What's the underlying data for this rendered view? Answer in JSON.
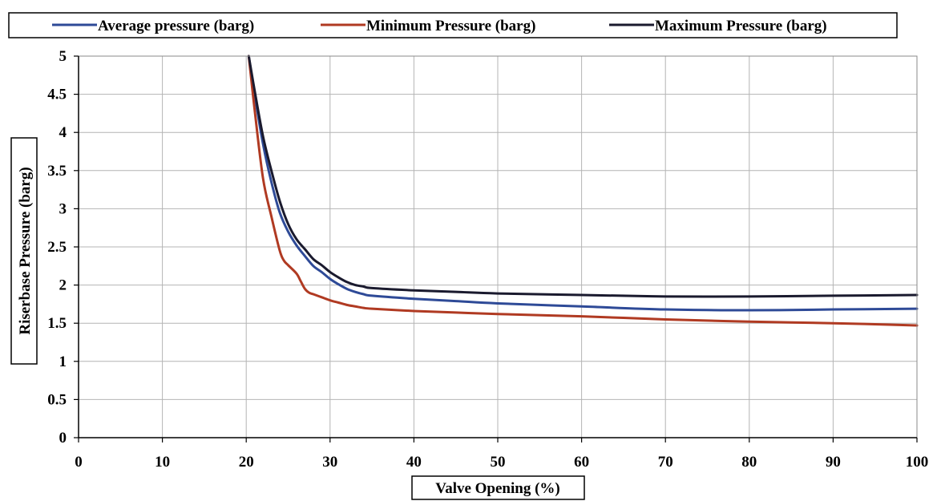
{
  "chart_data": {
    "type": "line",
    "title": "",
    "xlabel": "Valve Opening (%)",
    "ylabel": "Riserbase Pressure (barg)",
    "xlim": [
      0,
      100
    ],
    "ylim": [
      0,
      5
    ],
    "xticks": [
      0,
      10,
      20,
      30,
      40,
      50,
      60,
      70,
      80,
      90,
      100
    ],
    "yticks": [
      0,
      0.5,
      1,
      1.5,
      2,
      2.5,
      3,
      3.5,
      4,
      4.5,
      5
    ],
    "grid": true,
    "legend_position": "top",
    "series": [
      {
        "name": "Average pressure (barg)",
        "color": "#2e4a97",
        "x": [
          20.3,
          21,
          22,
          23,
          24,
          25,
          26,
          27,
          28,
          29,
          30,
          31,
          32,
          33,
          34,
          35,
          40,
          45,
          50,
          60,
          70,
          80,
          90,
          100
        ],
        "y": [
          5.0,
          4.5,
          3.85,
          3.35,
          2.95,
          2.7,
          2.52,
          2.38,
          2.25,
          2.17,
          2.08,
          2.01,
          1.95,
          1.91,
          1.88,
          1.86,
          1.82,
          1.79,
          1.76,
          1.72,
          1.68,
          1.67,
          1.68,
          1.69
        ]
      },
      {
        "name": "Minimum Pressure (barg)",
        "color": "#b03a22",
        "x": [
          20.3,
          21,
          22,
          23,
          24,
          24.5,
          25,
          26,
          26.5,
          27,
          27.5,
          28,
          29,
          30,
          31,
          32,
          33,
          34,
          35,
          40,
          45,
          50,
          60,
          70,
          80,
          90,
          100
        ],
        "y": [
          5.0,
          4.3,
          3.4,
          2.9,
          2.45,
          2.32,
          2.26,
          2.15,
          2.05,
          1.95,
          1.9,
          1.88,
          1.84,
          1.8,
          1.77,
          1.74,
          1.72,
          1.7,
          1.69,
          1.66,
          1.64,
          1.62,
          1.59,
          1.55,
          1.52,
          1.5,
          1.47
        ]
      },
      {
        "name": "Maximum Pressure (barg)",
        "color": "#1a1a2e",
        "x": [
          20.3,
          21,
          22,
          23,
          24,
          25,
          26,
          27,
          28,
          29,
          30,
          31,
          32,
          33,
          34,
          35,
          40,
          45,
          50,
          60,
          70,
          80,
          90,
          100
        ],
        "y": [
          5.0,
          4.55,
          3.95,
          3.5,
          3.1,
          2.8,
          2.6,
          2.47,
          2.34,
          2.26,
          2.17,
          2.1,
          2.04,
          2.0,
          1.98,
          1.96,
          1.93,
          1.91,
          1.89,
          1.87,
          1.85,
          1.85,
          1.86,
          1.87
        ]
      }
    ]
  }
}
